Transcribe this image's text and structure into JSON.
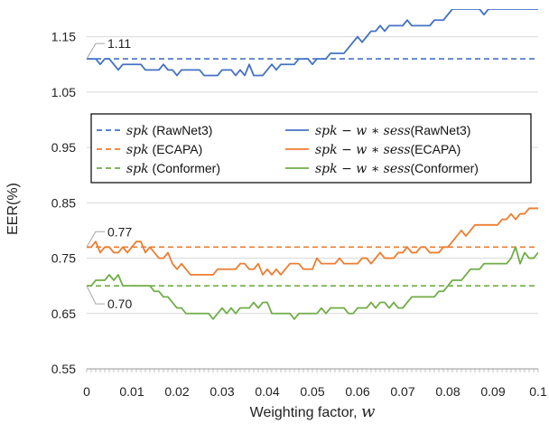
{
  "chart_data": {
    "type": "line",
    "title": "",
    "xlabel": "Weighting factor, ",
    "xlabel_symbol": "w",
    "ylabel": "EER(%)",
    "xlim": [
      0,
      0.1
    ],
    "ylim": [
      0.55,
      1.2
    ],
    "x_ticks": [
      "0",
      "0.01",
      "0.02",
      "0.03",
      "0.04",
      "0.05",
      "0.06",
      "0.07",
      "0.08",
      "0.09",
      "0.1"
    ],
    "y_ticks": [
      "0.55",
      "0.65",
      "0.75",
      "0.85",
      "0.95",
      "1.05",
      "1.15"
    ],
    "x_tick_values": [
      0,
      0.01,
      0.02,
      0.03,
      0.04,
      0.05,
      0.06,
      0.07,
      0.08,
      0.09,
      0.1
    ],
    "y_tick_values": [
      0.55,
      0.65,
      0.75,
      0.85,
      0.95,
      1.05,
      1.15
    ],
    "grid": "horizontal",
    "legend_placement": "center",
    "annotations": [
      {
        "text": "1.11",
        "x": 0,
        "y": 1.11
      },
      {
        "text": "0.77",
        "x": 0,
        "y": 0.77
      },
      {
        "text": "0.70",
        "x": 0,
        "y": 0.7
      }
    ],
    "x": [
      0,
      0.001,
      0.002,
      0.003,
      0.004,
      0.005,
      0.006,
      0.007,
      0.008,
      0.009,
      0.01,
      0.011,
      0.012,
      0.013,
      0.014,
      0.015,
      0.016,
      0.017,
      0.018,
      0.019,
      0.02,
      0.021,
      0.022,
      0.023,
      0.024,
      0.025,
      0.026,
      0.027,
      0.028,
      0.029,
      0.03,
      0.031,
      0.032,
      0.033,
      0.034,
      0.035,
      0.036,
      0.037,
      0.038,
      0.039,
      0.04,
      0.041,
      0.042,
      0.043,
      0.044,
      0.045,
      0.046,
      0.047,
      0.048,
      0.049,
      0.05,
      0.051,
      0.052,
      0.053,
      0.054,
      0.055,
      0.056,
      0.057,
      0.058,
      0.059,
      0.06,
      0.061,
      0.062,
      0.063,
      0.064,
      0.065,
      0.066,
      0.067,
      0.068,
      0.069,
      0.07,
      0.071,
      0.072,
      0.073,
      0.074,
      0.075,
      0.076,
      0.077,
      0.078,
      0.079,
      0.08,
      0.081,
      0.082,
      0.083,
      0.084,
      0.085,
      0.086,
      0.087,
      0.088,
      0.089,
      0.09,
      0.091,
      0.092,
      0.093,
      0.094,
      0.095,
      0.096,
      0.097,
      0.098,
      0.099,
      0.1
    ],
    "series": [
      {
        "name_prefix": "spk",
        "name_suffix": " (RawNet3)",
        "color": "#4472C4",
        "dashed": true,
        "values": [
          1.11,
          1.11,
          1.11,
          1.11,
          1.11,
          1.11,
          1.11,
          1.11,
          1.11,
          1.11,
          1.11,
          1.11,
          1.11,
          1.11,
          1.11,
          1.11,
          1.11,
          1.11,
          1.11,
          1.11,
          1.11,
          1.11,
          1.11,
          1.11,
          1.11,
          1.11,
          1.11,
          1.11,
          1.11,
          1.11,
          1.11,
          1.11,
          1.11,
          1.11,
          1.11,
          1.11,
          1.11,
          1.11,
          1.11,
          1.11,
          1.11,
          1.11,
          1.11,
          1.11,
          1.11,
          1.11,
          1.11,
          1.11,
          1.11,
          1.11,
          1.11,
          1.11,
          1.11,
          1.11,
          1.11,
          1.11,
          1.11,
          1.11,
          1.11,
          1.11,
          1.11,
          1.11,
          1.11,
          1.11,
          1.11,
          1.11,
          1.11,
          1.11,
          1.11,
          1.11,
          1.11,
          1.11,
          1.11,
          1.11,
          1.11,
          1.11,
          1.11,
          1.11,
          1.11,
          1.11,
          1.11,
          1.11,
          1.11,
          1.11,
          1.11,
          1.11,
          1.11,
          1.11,
          1.11,
          1.11,
          1.11,
          1.11,
          1.11,
          1.11,
          1.11,
          1.11,
          1.11,
          1.11,
          1.11,
          1.11,
          1.11
        ]
      },
      {
        "name_prefix": "spk",
        "name_suffix": " (ECAPA)",
        "color": "#ED7D31",
        "dashed": true,
        "values": [
          0.77,
          0.77,
          0.77,
          0.77,
          0.77,
          0.77,
          0.77,
          0.77,
          0.77,
          0.77,
          0.77,
          0.77,
          0.77,
          0.77,
          0.77,
          0.77,
          0.77,
          0.77,
          0.77,
          0.77,
          0.77,
          0.77,
          0.77,
          0.77,
          0.77,
          0.77,
          0.77,
          0.77,
          0.77,
          0.77,
          0.77,
          0.77,
          0.77,
          0.77,
          0.77,
          0.77,
          0.77,
          0.77,
          0.77,
          0.77,
          0.77,
          0.77,
          0.77,
          0.77,
          0.77,
          0.77,
          0.77,
          0.77,
          0.77,
          0.77,
          0.77,
          0.77,
          0.77,
          0.77,
          0.77,
          0.77,
          0.77,
          0.77,
          0.77,
          0.77,
          0.77,
          0.77,
          0.77,
          0.77,
          0.77,
          0.77,
          0.77,
          0.77,
          0.77,
          0.77,
          0.77,
          0.77,
          0.77,
          0.77,
          0.77,
          0.77,
          0.77,
          0.77,
          0.77,
          0.77,
          0.77,
          0.77,
          0.77,
          0.77,
          0.77,
          0.77,
          0.77,
          0.77,
          0.77,
          0.77,
          0.77,
          0.77,
          0.77,
          0.77,
          0.77,
          0.77,
          0.77,
          0.77,
          0.77,
          0.77,
          0.77
        ]
      },
      {
        "name_prefix": "spk",
        "name_suffix": " (Conformer)",
        "color": "#70AD47",
        "dashed": true,
        "values": [
          0.7,
          0.7,
          0.7,
          0.7,
          0.7,
          0.7,
          0.7,
          0.7,
          0.7,
          0.7,
          0.7,
          0.7,
          0.7,
          0.7,
          0.7,
          0.7,
          0.7,
          0.7,
          0.7,
          0.7,
          0.7,
          0.7,
          0.7,
          0.7,
          0.7,
          0.7,
          0.7,
          0.7,
          0.7,
          0.7,
          0.7,
          0.7,
          0.7,
          0.7,
          0.7,
          0.7,
          0.7,
          0.7,
          0.7,
          0.7,
          0.7,
          0.7,
          0.7,
          0.7,
          0.7,
          0.7,
          0.7,
          0.7,
          0.7,
          0.7,
          0.7,
          0.7,
          0.7,
          0.7,
          0.7,
          0.7,
          0.7,
          0.7,
          0.7,
          0.7,
          0.7,
          0.7,
          0.7,
          0.7,
          0.7,
          0.7,
          0.7,
          0.7,
          0.7,
          0.7,
          0.7,
          0.7,
          0.7,
          0.7,
          0.7,
          0.7,
          0.7,
          0.7,
          0.7,
          0.7,
          0.7,
          0.7,
          0.7,
          0.7,
          0.7,
          0.7,
          0.7,
          0.7,
          0.7,
          0.7,
          0.7,
          0.7,
          0.7,
          0.7,
          0.7,
          0.7,
          0.7,
          0.7,
          0.7,
          0.7,
          0.7
        ]
      },
      {
        "name_prefix": "spk − w ∗ sess",
        "name_suffix": "(RawNet3)",
        "color": "#4472C4",
        "dashed": false,
        "values": [
          1.11,
          1.11,
          1.11,
          1.1,
          1.11,
          1.11,
          1.1,
          1.09,
          1.1,
          1.1,
          1.1,
          1.1,
          1.1,
          1.09,
          1.09,
          1.09,
          1.09,
          1.1,
          1.09,
          1.09,
          1.08,
          1.09,
          1.09,
          1.09,
          1.09,
          1.09,
          1.08,
          1.08,
          1.08,
          1.08,
          1.09,
          1.09,
          1.09,
          1.08,
          1.09,
          1.08,
          1.1,
          1.08,
          1.08,
          1.08,
          1.09,
          1.1,
          1.09,
          1.1,
          1.1,
          1.1,
          1.1,
          1.11,
          1.11,
          1.11,
          1.1,
          1.11,
          1.11,
          1.11,
          1.12,
          1.12,
          1.12,
          1.12,
          1.13,
          1.14,
          1.15,
          1.14,
          1.15,
          1.16,
          1.16,
          1.17,
          1.16,
          1.17,
          1.17,
          1.17,
          1.17,
          1.18,
          1.17,
          1.17,
          1.17,
          1.17,
          1.17,
          1.18,
          1.18,
          1.18,
          1.19,
          1.2,
          1.2,
          1.2,
          1.2,
          1.2,
          1.2,
          1.2,
          1.19,
          1.2,
          1.2,
          1.2,
          1.2,
          1.2,
          1.2,
          1.2,
          1.2,
          1.2,
          1.2,
          1.2,
          1.2
        ]
      },
      {
        "name_prefix": "spk − w ∗ sess",
        "name_suffix": "(ECAPA)",
        "color": "#ED7D31",
        "dashed": false,
        "values": [
          0.77,
          0.77,
          0.78,
          0.76,
          0.77,
          0.77,
          0.76,
          0.76,
          0.77,
          0.76,
          0.77,
          0.78,
          0.78,
          0.76,
          0.77,
          0.76,
          0.75,
          0.75,
          0.76,
          0.74,
          0.73,
          0.74,
          0.73,
          0.72,
          0.72,
          0.72,
          0.72,
          0.72,
          0.72,
          0.73,
          0.73,
          0.73,
          0.73,
          0.73,
          0.74,
          0.74,
          0.73,
          0.73,
          0.74,
          0.72,
          0.73,
          0.72,
          0.73,
          0.72,
          0.73,
          0.74,
          0.74,
          0.74,
          0.73,
          0.73,
          0.73,
          0.75,
          0.74,
          0.74,
          0.74,
          0.74,
          0.75,
          0.74,
          0.74,
          0.74,
          0.74,
          0.75,
          0.75,
          0.74,
          0.75,
          0.76,
          0.75,
          0.75,
          0.75,
          0.76,
          0.76,
          0.77,
          0.76,
          0.76,
          0.77,
          0.77,
          0.76,
          0.76,
          0.76,
          0.77,
          0.77,
          0.78,
          0.79,
          0.8,
          0.79,
          0.8,
          0.81,
          0.81,
          0.81,
          0.81,
          0.81,
          0.81,
          0.82,
          0.82,
          0.83,
          0.82,
          0.83,
          0.83,
          0.84,
          0.84,
          0.84
        ]
      },
      {
        "name_prefix": "spk − w ∗ sess",
        "name_suffix": "(Conformer)",
        "color": "#70AD47",
        "dashed": false,
        "values": [
          0.7,
          0.7,
          0.71,
          0.71,
          0.71,
          0.72,
          0.71,
          0.72,
          0.7,
          0.7,
          0.7,
          0.7,
          0.7,
          0.7,
          0.7,
          0.69,
          0.69,
          0.68,
          0.68,
          0.67,
          0.66,
          0.66,
          0.65,
          0.65,
          0.65,
          0.65,
          0.65,
          0.65,
          0.64,
          0.65,
          0.66,
          0.65,
          0.66,
          0.65,
          0.66,
          0.66,
          0.66,
          0.67,
          0.66,
          0.67,
          0.67,
          0.65,
          0.65,
          0.65,
          0.65,
          0.65,
          0.64,
          0.65,
          0.65,
          0.65,
          0.65,
          0.65,
          0.66,
          0.65,
          0.66,
          0.66,
          0.66,
          0.66,
          0.65,
          0.65,
          0.66,
          0.66,
          0.66,
          0.67,
          0.66,
          0.67,
          0.67,
          0.66,
          0.67,
          0.66,
          0.66,
          0.67,
          0.68,
          0.68,
          0.68,
          0.68,
          0.68,
          0.68,
          0.69,
          0.69,
          0.7,
          0.71,
          0.71,
          0.71,
          0.72,
          0.73,
          0.73,
          0.73,
          0.74,
          0.74,
          0.74,
          0.74,
          0.74,
          0.74,
          0.75,
          0.77,
          0.74,
          0.76,
          0.75,
          0.75,
          0.76
        ]
      }
    ]
  }
}
